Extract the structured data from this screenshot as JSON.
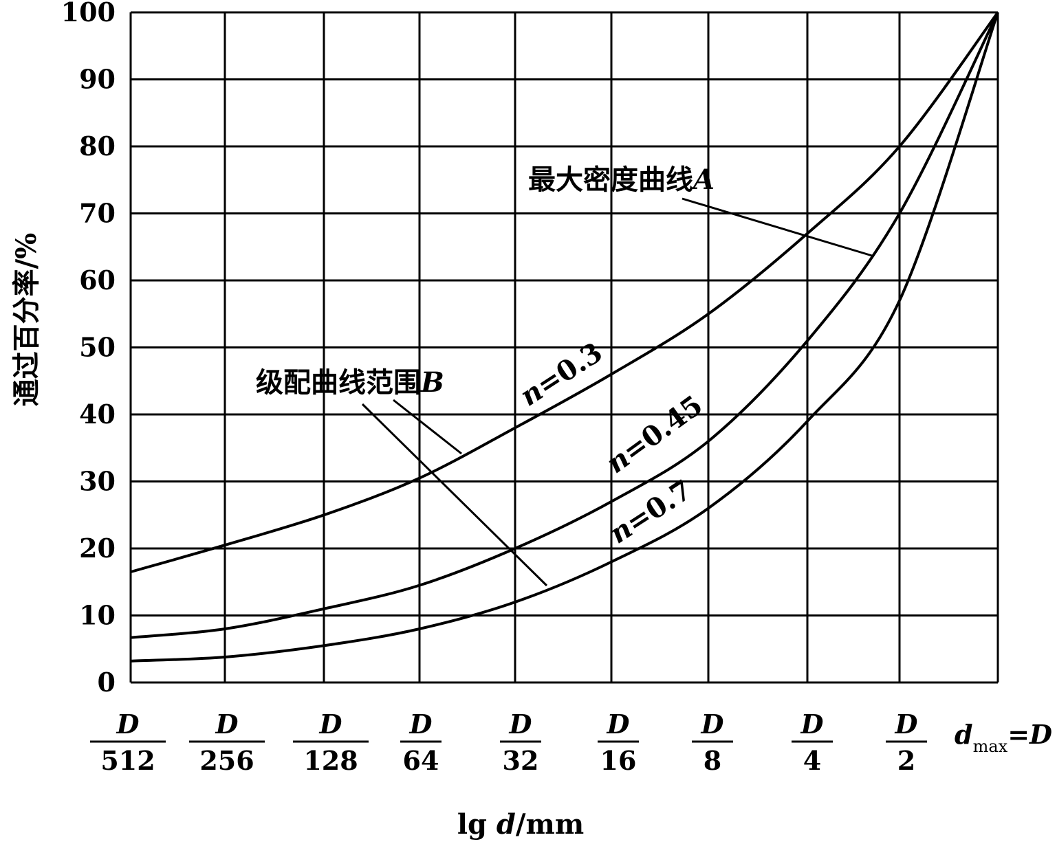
{
  "chart_data": {
    "type": "line",
    "ylabel": "通过百分率/%",
    "xlabel_parts": [
      "lg ",
      "d",
      "/mm"
    ],
    "ylim": [
      0,
      100
    ],
    "y_ticks": [
      "0",
      "10",
      "20",
      "30",
      "40",
      "50",
      "60",
      "70",
      "80",
      "90",
      "100"
    ],
    "x_ticks": [
      {
        "num": "D",
        "den": "512"
      },
      {
        "num": "D",
        "den": "256"
      },
      {
        "num": "D",
        "den": "128"
      },
      {
        "num": "D",
        "den": "64"
      },
      {
        "num": "D",
        "den": "32"
      },
      {
        "num": "D",
        "den": "16"
      },
      {
        "num": "D",
        "den": "8"
      },
      {
        "num": "D",
        "den": "4"
      },
      {
        "num": "D",
        "den": "2"
      }
    ],
    "x_end_label": {
      "d": "d",
      "sub": "max",
      "rest": "=D"
    },
    "x": [
      "D/512",
      "D/256",
      "D/128",
      "D/64",
      "D/32",
      "D/16",
      "D/8",
      "D/4",
      "D/2",
      "D"
    ],
    "series": [
      {
        "n_prefix": "n",
        "n_value": "=0.3",
        "values": [
          16.5,
          20.5,
          25,
          30.5,
          38,
          46,
          55,
          67,
          80,
          100
        ]
      },
      {
        "n_prefix": "n",
        "n_value": "=0.45",
        "values": [
          6.7,
          8,
          11,
          14.5,
          20,
          27,
          36,
          51,
          70,
          100
        ]
      },
      {
        "n_prefix": "n",
        "n_value": "=0.7",
        "values": [
          3.2,
          3.8,
          5.5,
          8,
          12,
          18,
          26,
          39,
          57,
          100
        ]
      }
    ],
    "annotations": {
      "curve_a": {
        "text": "最大密度曲线",
        "letter": "A"
      },
      "curve_b": {
        "text": "级配曲线范围",
        "letter": "B"
      }
    },
    "grid": true
  }
}
